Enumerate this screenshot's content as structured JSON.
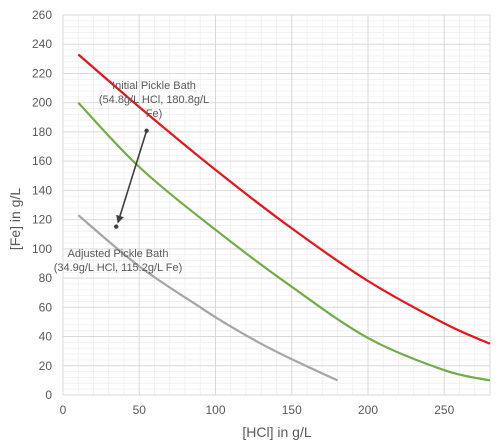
{
  "chart_data": {
    "type": "line",
    "xlabel": "[HCl] in g/L",
    "ylabel": "[Fe] in g/L",
    "xlim": [
      0,
      280
    ],
    "ylim": [
      0,
      260
    ],
    "xticks": [
      0,
      50,
      100,
      150,
      200,
      250
    ],
    "yticks": [
      0,
      20,
      40,
      60,
      80,
      100,
      120,
      140,
      160,
      180,
      200,
      220,
      240,
      260
    ],
    "minor_grid": true,
    "legend": "none",
    "series": [
      {
        "color": "#e8141b",
        "points": [
          [
            10,
            233
          ],
          [
            50,
            197
          ],
          [
            100,
            154
          ],
          [
            150,
            114
          ],
          [
            200,
            78
          ],
          [
            250,
            49
          ],
          [
            280,
            35
          ]
        ]
      },
      {
        "color": "#70ad47",
        "points": [
          [
            10,
            200
          ],
          [
            50,
            156
          ],
          [
            100,
            113
          ],
          [
            150,
            74
          ],
          [
            200,
            39
          ],
          [
            250,
            17
          ],
          [
            280,
            10
          ]
        ]
      },
      {
        "color": "#a5a5a5",
        "points": [
          [
            10,
            123
          ],
          [
            50,
            88
          ],
          [
            90,
            60
          ],
          [
            105,
            50
          ],
          [
            130,
            35
          ],
          [
            155,
            22
          ],
          [
            180,
            10
          ]
        ]
      }
    ],
    "annotations": [
      {
        "lines": [
          "Initial Pickle Bath",
          "(54.8g/L HCl, 180.8g/L",
          "Fe)"
        ],
        "point": [
          54.8,
          180.8
        ]
      },
      {
        "lines": [
          "Adjusted Pickle Bath",
          "(34.9g/L HCl, 115.2g/L Fe)"
        ],
        "point": [
          34.9,
          115.2
        ]
      }
    ]
  }
}
